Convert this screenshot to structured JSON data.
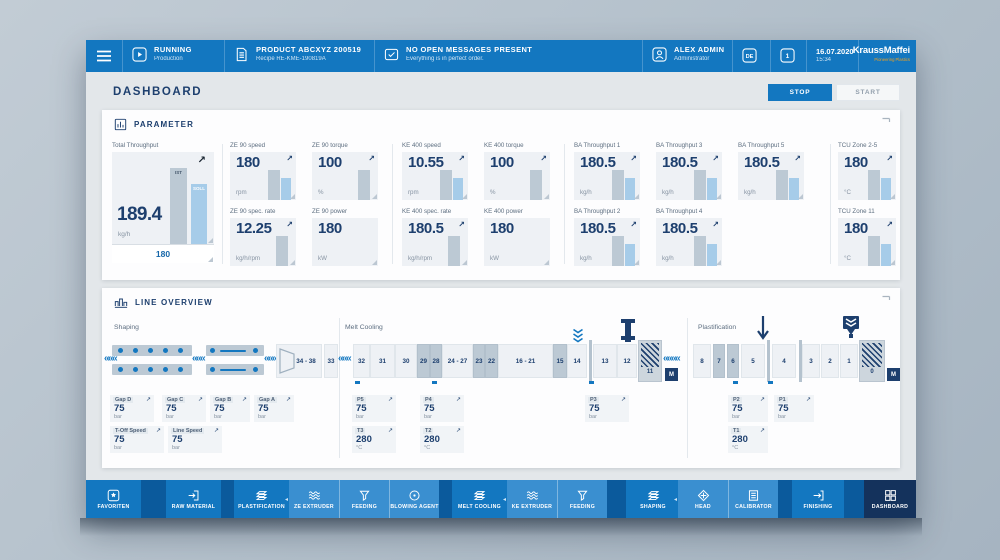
{
  "colors": {
    "accent": "#1377c0",
    "navy": "#1d3f6e",
    "bar_gray": "#bcc9d4",
    "bar_blue": "#a6cce9",
    "orange": "#f5a11b",
    "nav_active": "#14325c"
  },
  "topbar": {
    "status": {
      "label": "RUNNING",
      "sub": "Production"
    },
    "product": {
      "label": "PRODUCT ABCXYZ 200519",
      "sub": "Recipe RE-KME-190819A"
    },
    "messages": {
      "label": "NO OPEN MESSAGES PRESENT",
      "sub": "Everything is in perfect order."
    },
    "user": {
      "label": "ALEX ADMIN",
      "sub": "Administrator"
    },
    "lang_badge": "DE",
    "help_badge": "1",
    "date": "16.07.2020",
    "time": "15:34",
    "brand": "KraussMaffei",
    "brand_sub": "Pioneering Plastics"
  },
  "header": {
    "title": "DASHBOARD",
    "stop_label": "STOP",
    "start_label": "START"
  },
  "parameter": {
    "title": "PARAMETER",
    "total": {
      "label": "Total Throughput",
      "value": "189.4",
      "unit": "kg/h",
      "setpoint": "180",
      "ist_label": "IST",
      "soll_label": "SOLL"
    },
    "tiles_row1": [
      {
        "label": "ZE 90 speed",
        "value": "180",
        "unit": "rpm",
        "bars": "both"
      },
      {
        "label": "ZE 90 torque",
        "value": "100",
        "unit": "%",
        "bars": "gray"
      },
      {
        "label": "KE 400 speed",
        "value": "10.55",
        "unit": "rpm",
        "bars": "both"
      },
      {
        "label": "KE 400 torque",
        "value": "100",
        "unit": "%",
        "bars": "gray"
      },
      {
        "label": "BA Throughput 1",
        "value": "180.5",
        "unit": "kg/h",
        "bars": "both"
      },
      {
        "label": "BA Throughput 3",
        "value": "180.5",
        "unit": "kg/h",
        "bars": "both"
      },
      {
        "label": "BA Throughput 5",
        "value": "180.5",
        "unit": "kg/h",
        "bars": "both"
      },
      {
        "label": "TCU Zone 2-5",
        "value": "180",
        "unit": "°C",
        "bars": "both"
      }
    ],
    "tiles_row2": [
      {
        "label": "ZE 90 spec. rate",
        "value": "12.25",
        "unit": "kg/h/rpm",
        "bars": "gray"
      },
      {
        "label": "ZE 90 power",
        "value": "180",
        "unit": "kW",
        "bars": "none"
      },
      {
        "label": "KE 400 spec. rate",
        "value": "180.5",
        "unit": "kg/h/rpm",
        "bars": "gray"
      },
      {
        "label": "KE 400 power",
        "value": "180",
        "unit": "kW",
        "bars": "none"
      },
      {
        "label": "BA Throughput 2",
        "value": "180.5",
        "unit": "kg/h",
        "bars": "both"
      },
      {
        "label": "BA Throughput 4",
        "value": "180.5",
        "unit": "kg/h",
        "bars": "both"
      },
      {
        "label": "TCU Zone 11",
        "value": "180",
        "unit": "°C",
        "bars": "both"
      }
    ]
  },
  "line_overview": {
    "title": "LINE OVERVIEW",
    "sections": [
      "Shaping",
      "Melt Cooling",
      "Plastification"
    ],
    "shaping": {
      "die_label": "34 - 38",
      "end_label": "33",
      "tiles": [
        {
          "label": "Gap D",
          "value": "75",
          "unit": "bar"
        },
        {
          "label": "Gap C",
          "value": "75",
          "unit": "bar"
        },
        {
          "label": "Gap B",
          "value": "75",
          "unit": "bar"
        },
        {
          "label": "Gap A",
          "value": "75",
          "unit": "bar"
        },
        {
          "label": "T-Off Speed",
          "value": "75",
          "unit": "bar"
        },
        {
          "label": "Line Speed",
          "value": "75",
          "unit": "bar"
        }
      ]
    },
    "melt_cooling": {
      "segments": [
        "32",
        "31",
        "30",
        "29",
        "28",
        "24 - 27",
        "23",
        "22",
        "16 - 21",
        "15",
        "14",
        "13",
        "12"
      ],
      "highlight": [
        3,
        4,
        6,
        7,
        9
      ],
      "motor_label": "11",
      "m_label": "M",
      "tiles": [
        {
          "label": "P5",
          "value": "75",
          "unit": "bar"
        },
        {
          "label": "P4",
          "value": "75",
          "unit": "bar"
        },
        {
          "label": "P3",
          "value": "75",
          "unit": "bar"
        },
        {
          "label": "T3",
          "value": "280",
          "unit": "°C"
        },
        {
          "label": "T2",
          "value": "280",
          "unit": "°C"
        }
      ]
    },
    "plastification": {
      "segments": [
        "8",
        "7",
        "6",
        "5",
        "4",
        "3",
        "2",
        "1"
      ],
      "highlight": [
        1,
        2
      ],
      "motor_label": "0",
      "m_label": "M",
      "tiles": [
        {
          "label": "P2",
          "value": "75",
          "unit": "bar"
        },
        {
          "label": "P1",
          "value": "75",
          "unit": "bar"
        },
        {
          "label": "T1",
          "value": "280",
          "unit": "°C"
        }
      ]
    }
  },
  "nav": {
    "items": [
      {
        "label": "FAVORITEN",
        "icon": "favorites"
      },
      {
        "label": "RAW MATERIAL",
        "icon": "raw-material"
      },
      {
        "label": "PLASTIFICATION",
        "icon": "sheets"
      },
      {
        "label": "ZE EXTRUDER",
        "icon": "extruder"
      },
      {
        "label": "FEEDING",
        "icon": "feeding"
      },
      {
        "label": "BLOWING AGENT",
        "icon": "blowing-agent"
      },
      {
        "label": "MELT COOLING",
        "icon": "sheets"
      },
      {
        "label": "KE EXTRUDER",
        "icon": "extruder"
      },
      {
        "label": "FEEDING",
        "icon": "feeding"
      },
      {
        "label": "SHAPING",
        "icon": "sheets"
      },
      {
        "label": "HEAD",
        "icon": "head"
      },
      {
        "label": "CALIBRATOR",
        "icon": "calibrator"
      },
      {
        "label": "FINISHING",
        "icon": "finishing"
      },
      {
        "label": "DASHBOARD",
        "icon": "dashboard",
        "active": true
      }
    ]
  }
}
